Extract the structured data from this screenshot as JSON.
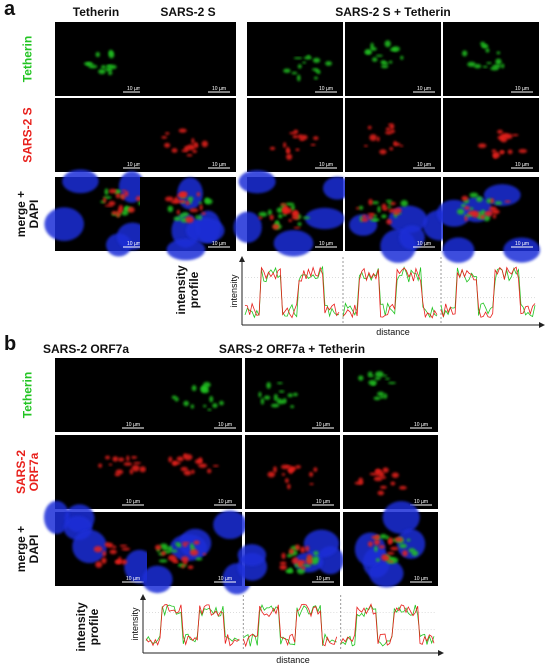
{
  "panel_a": {
    "letter": "a",
    "column_headers": [
      "Tetherin",
      "SARS-2 S",
      "SARS-2 S + Tetherin"
    ],
    "row_labels": [
      "Tetherin",
      "SARS-2 S",
      "merge + DAPI"
    ],
    "scale_bar": "10 µm",
    "profile_label": "intensity profile",
    "profile_y_label": "intensity",
    "profile_x_label": "distance"
  },
  "panel_b": {
    "letter": "b",
    "column_headers": [
      "SARS-2 ORF7a",
      "SARS-2 ORF7a + Tetherin"
    ],
    "row_labels": [
      "Tetherin",
      "SARS-2 ORF7a",
      "merge + DAPI"
    ],
    "scale_bar": "10 µm",
    "profile_label": "intensity profile",
    "profile_y_label": "intensity",
    "profile_x_label": "distance"
  }
}
